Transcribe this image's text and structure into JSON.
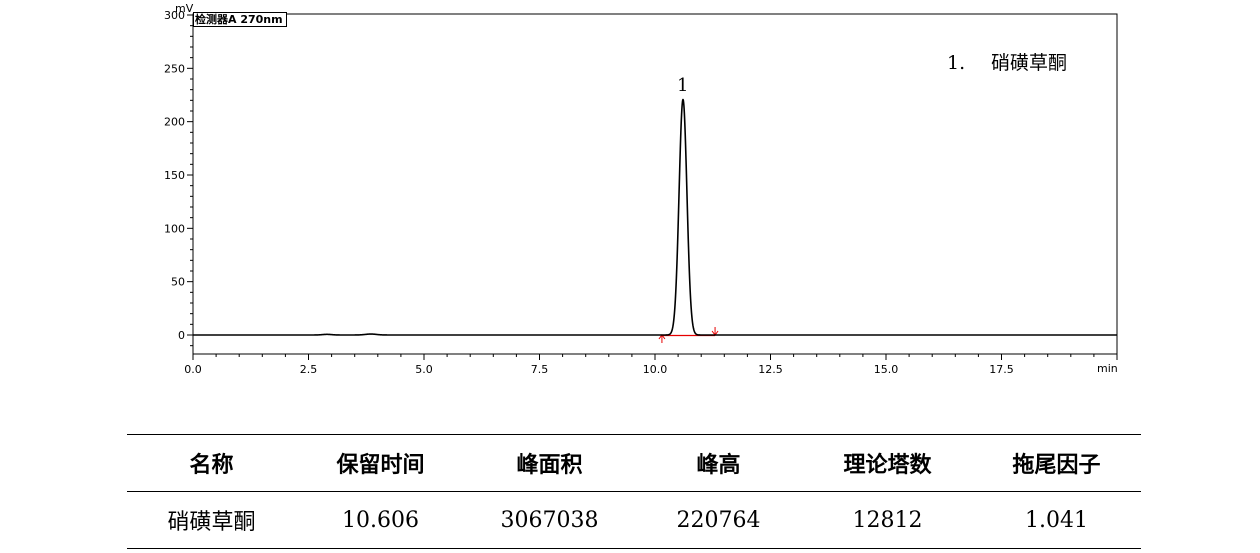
{
  "chart_data": {
    "type": "line",
    "detector_label": "检测器A 270nm",
    "ylabel": "mV",
    "xlabel": "min",
    "xlim": [
      0,
      20
    ],
    "ylim": [
      -20,
      300
    ],
    "x_ticks": [
      0.0,
      2.5,
      5.0,
      7.5,
      10.0,
      12.5,
      15.0,
      17.5
    ],
    "x_tick_labels": [
      "0.0",
      "2.5",
      "5.0",
      "7.5",
      "10.0",
      "12.5",
      "15.0",
      "17.5"
    ],
    "y_ticks": [
      0,
      50,
      100,
      150,
      200,
      250,
      300
    ],
    "y_tick_labels": [
      "0",
      "50",
      "100",
      "150",
      "200",
      "250",
      "300"
    ],
    "grid": false,
    "series": [
      {
        "peaks": [
          {
            "label": "1",
            "retention_time": 10.606,
            "height_mV": 220.764,
            "sigma_min": 0.085
          }
        ],
        "minor_bumps": [
          {
            "x": 2.9,
            "height_mV": 0.6,
            "sigma_min": 0.1
          },
          {
            "x": 3.85,
            "height_mV": 0.9,
            "sigma_min": 0.12
          }
        ]
      }
    ],
    "integration_markers": [
      {
        "x": 10.15,
        "direction": "up"
      },
      {
        "x": 11.3,
        "direction": "down"
      }
    ],
    "legend": {
      "number": "1.",
      "name": "硝磺草酮",
      "position": "top-right"
    },
    "colors": {
      "trace": "#000000",
      "baseline": "#e60000",
      "axis": "#000000"
    }
  },
  "table": {
    "headers": [
      "名称",
      "保留时间",
      "峰面积",
      "峰高",
      "理论塔数",
      "拖尾因子"
    ],
    "rows": [
      [
        "硝磺草酮",
        "10.606",
        "3067038",
        "220764",
        "12812",
        "1.041"
      ]
    ]
  }
}
